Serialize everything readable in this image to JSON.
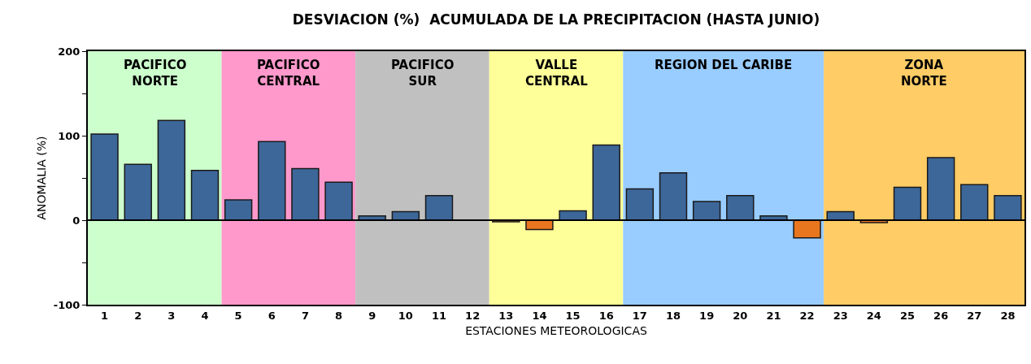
{
  "chart_data": {
    "type": "bar",
    "title": "DESVIACION (%)  ACUMULADA DE LA PRECIPITACION (HASTA JUNIO)",
    "xlabel": "ESTACIONES METEOROLOGICAS",
    "ylabel": "ANOMALIA (%)",
    "x": [
      1,
      2,
      3,
      4,
      5,
      6,
      7,
      8,
      9,
      10,
      11,
      12,
      13,
      14,
      15,
      16,
      17,
      18,
      19,
      20,
      21,
      22,
      23,
      24,
      25,
      26,
      27,
      28
    ],
    "values": [
      102,
      66,
      118,
      59,
      24,
      93,
      61,
      45,
      5,
      10,
      29,
      null,
      -2,
      -11,
      11,
      89,
      37,
      56,
      22,
      29,
      5,
      -21,
      10,
      -3,
      39,
      74,
      42,
      29
    ],
    "colors": [
      "#3d6799",
      "#3d6799",
      "#3d6799",
      "#3d6799",
      "#3d6799",
      "#3d6799",
      "#3d6799",
      "#3d6799",
      "#3d6799",
      "#3d6799",
      "#3d6799",
      "#3d6799",
      "#e8761e",
      "#e8761e",
      "#3d6799",
      "#3d6799",
      "#3d6799",
      "#3d6799",
      "#3d6799",
      "#3d6799",
      "#3d6799",
      "#e8761e",
      "#3d6799",
      "#e8761e",
      "#3d6799",
      "#3d6799",
      "#3d6799",
      "#3d6799"
    ],
    "xlim": [
      0.5,
      28.5
    ],
    "xticks": [
      1,
      2,
      3,
      4,
      5,
      6,
      7,
      8,
      9,
      10,
      11,
      12,
      13,
      14,
      15,
      16,
      17,
      18,
      19,
      20,
      21,
      22,
      23,
      24,
      25,
      26,
      27,
      28
    ],
    "ylim": [
      -100,
      200
    ],
    "yticks": [
      -100,
      {
        "value": -50,
        "label": null
      },
      0,
      {
        "value": 50,
        "label": null
      },
      100,
      {
        "value": 150,
        "label": null
      },
      200
    ],
    "bands": [
      {
        "axis": "x",
        "from": 0.5,
        "to": 4.5,
        "label": "PACIFICO\nNORTE",
        "color": "#ccffcc"
      },
      {
        "axis": "x",
        "from": 4.5,
        "to": 8.5,
        "label": "PACIFICO\nCENTRAL",
        "color": "#ff99cc"
      },
      {
        "axis": "x",
        "from": 8.5,
        "to": 12.5,
        "label": "PACIFICO\nSUR",
        "color": "#c0c0c0"
      },
      {
        "axis": "x",
        "from": 12.5,
        "to": 16.5,
        "label": "VALLE\nCENTRAL",
        "color": "#ffff99"
      },
      {
        "axis": "x",
        "from": 16.5,
        "to": 22.5,
        "label": "REGION DEL CARIBE",
        "color": "#99ccff"
      },
      {
        "axis": "x",
        "from": 22.5,
        "to": 28.5,
        "label": "ZONA\nNORTE",
        "color": "#ffcc66"
      }
    ],
    "ref_lines": [
      {
        "axis": "y",
        "value": 0,
        "color": "#000000",
        "line_style": "solid"
      }
    ],
    "grid": false
  }
}
